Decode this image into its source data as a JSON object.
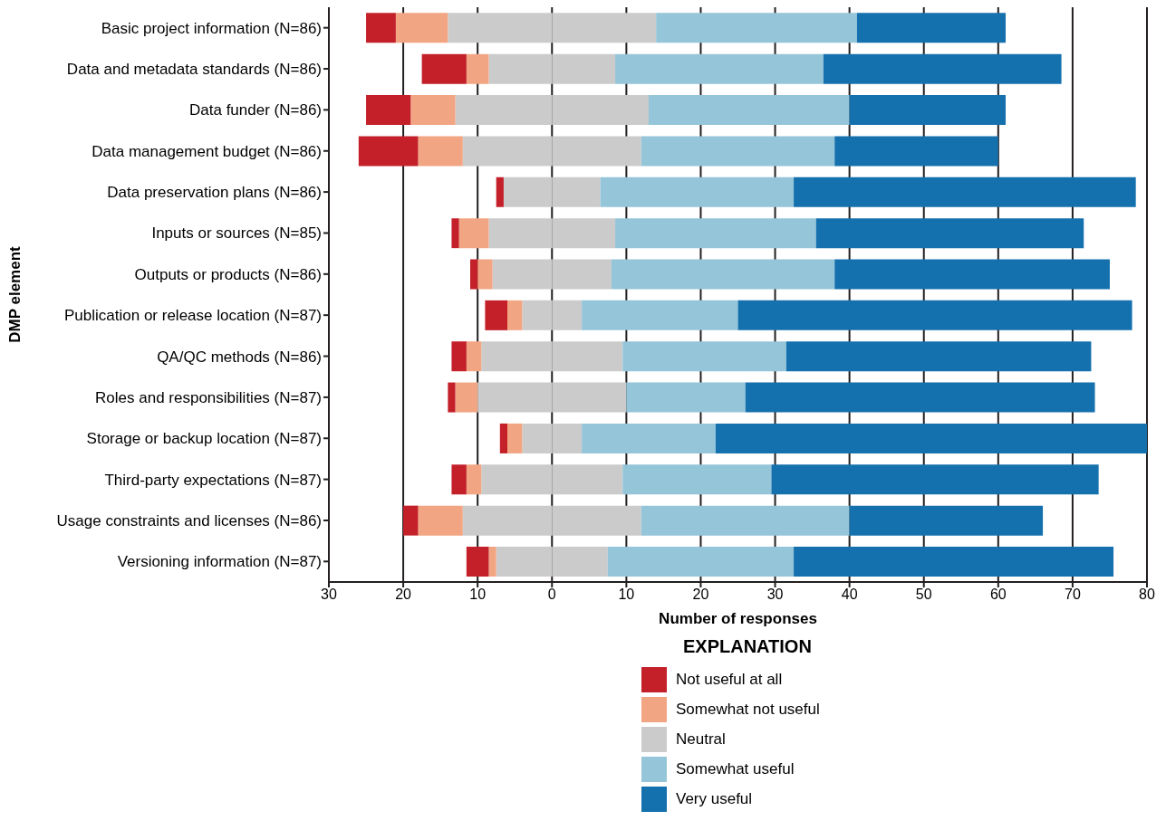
{
  "chart_data": {
    "type": "bar",
    "orientation": "horizontal",
    "stacked": true,
    "xlabel": "Number of responses",
    "ylabel": "DMP element",
    "legend_title": "EXPLANATION",
    "legend": "bottom",
    "grid": "x",
    "categories": [
      "Basic project information (N=86)",
      "Data and metadata standards (N=86)",
      "Data funder (N=86)",
      "Data management budget (N=86)",
      "Data preservation plans (N=86)",
      "Inputs or sources (N=85)",
      "Outputs or products (N=86)",
      "Publication or release location (N=87)",
      "QA/QC methods (N=86)",
      "Roles and responsibilities (N=87)",
      "Storage or backup location (N=87)",
      "Third-party expectations (N=87)",
      "Usage constraints and licenses (N=86)",
      "Versioning information (N=87)"
    ],
    "series": [
      {
        "color": "#cbcbcb",
        "values": [
          -14,
          -8.5,
          -13,
          -12,
          -6.5,
          -8.5,
          -8,
          -4,
          -9.5,
          -10,
          -4,
          -9.5,
          -12,
          -7.5
        ]
      },
      {
        "name": "Somewhat not useful",
        "color": "#f2a583",
        "values": [
          -7,
          -3,
          -6,
          -6,
          0,
          -4,
          -2,
          -2,
          -2,
          -3,
          -2,
          -2,
          -6,
          -1
        ]
      },
      {
        "name": "Not useful at all",
        "color": "#c4202a",
        "values": [
          -4,
          -6,
          -6,
          -8,
          -1,
          -1,
          -1,
          -3,
          -2,
          -1,
          -1,
          -2,
          -2,
          -3
        ]
      },
      {
        "name": "Neutral",
        "color": "#cbcbcb",
        "values": [
          14,
          8.5,
          13,
          12,
          6.5,
          8.5,
          8,
          4,
          9.5,
          10,
          4,
          9.5,
          12,
          7.5
        ]
      },
      {
        "name": "Somewhat useful",
        "color": "#94c5d9",
        "values": [
          27,
          28,
          27,
          26,
          26,
          27,
          30,
          21,
          22,
          16,
          18,
          20,
          28,
          25
        ]
      },
      {
        "name": "Very useful",
        "color": "#1571ae",
        "values": [
          20,
          32,
          21,
          22,
          46,
          36,
          37,
          53,
          41,
          47,
          58,
          44,
          26,
          43
        ]
      }
    ],
    "xlim": [
      -30,
      80
    ],
    "xticks": [
      {
        "value": -30,
        "label": "30"
      },
      {
        "value": -20,
        "label": "20"
      },
      {
        "value": -10,
        "label": "10"
      },
      0,
      10,
      20,
      30,
      40,
      50,
      60,
      70,
      80
    ]
  }
}
